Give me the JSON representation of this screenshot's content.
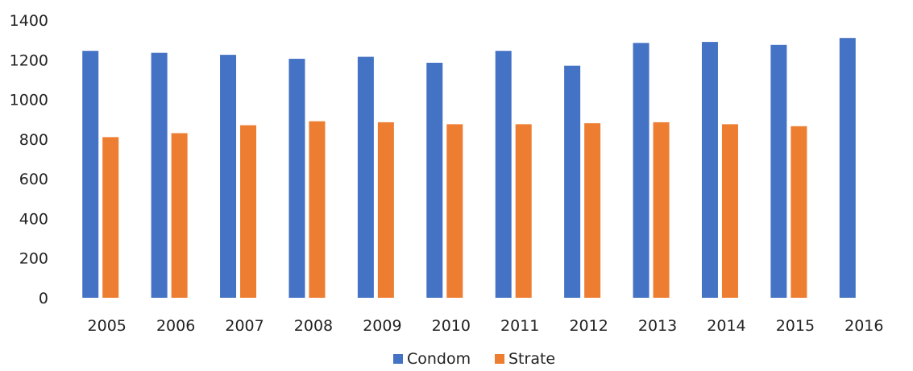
{
  "chart_data": {
    "type": "bar",
    "title": "",
    "xlabel": "",
    "ylabel": "",
    "categories": [
      "2005",
      "2006",
      "2007",
      "2008",
      "2009",
      "2010",
      "2011",
      "2012",
      "2013",
      "2014",
      "2015",
      "2016"
    ],
    "series": [
      {
        "name": "Condom",
        "color": "#4472C4",
        "values": [
          1245,
          1235,
          1225,
          1205,
          1215,
          1185,
          1245,
          1170,
          1285,
          1290,
          1275,
          1310
        ]
      },
      {
        "name": "Strate",
        "color": "#ED7D31",
        "values": [
          810,
          830,
          870,
          890,
          885,
          875,
          875,
          880,
          885,
          875,
          865,
          null
        ]
      }
    ],
    "ylim": [
      0,
      1400
    ],
    "yticks": [
      0,
      200,
      400,
      600,
      800,
      1000,
      1200,
      1400
    ],
    "grid": false,
    "legend": "bottom-center"
  }
}
